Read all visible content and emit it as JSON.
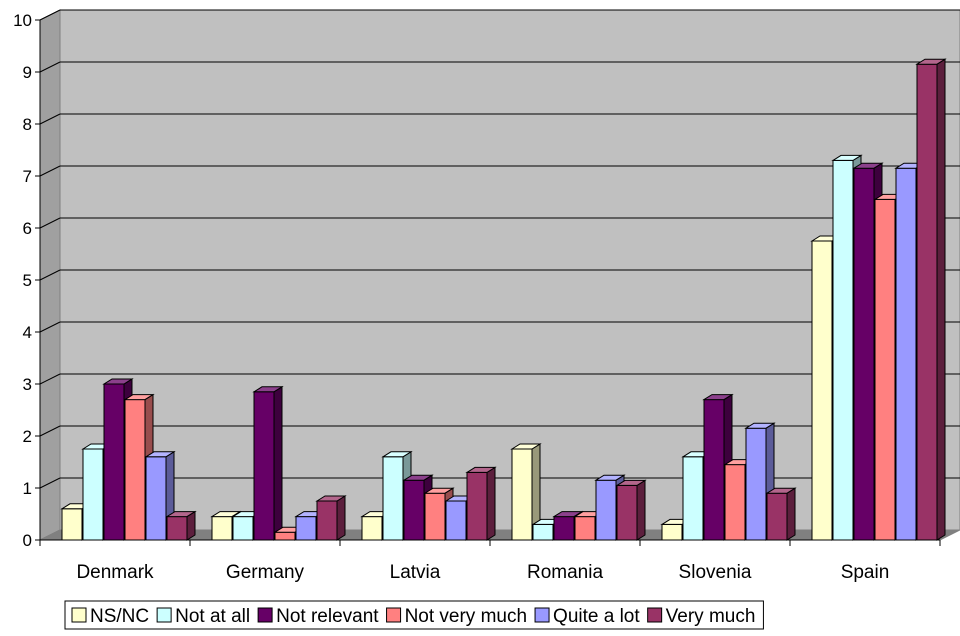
{
  "chart_data": {
    "type": "bar",
    "title": "",
    "xlabel": "",
    "ylabel": "",
    "ylim": [
      0,
      10
    ],
    "yticks": [
      0,
      1,
      2,
      3,
      4,
      5,
      6,
      7,
      8,
      9,
      10
    ],
    "grid": true,
    "legend_position": "bottom",
    "style": "3d-clustered-column",
    "categories": [
      "Denmark",
      "Germany",
      "Latvia",
      "Romania",
      "Slovenia",
      "Spain"
    ],
    "series": [
      {
        "name": "NS/NC",
        "color": "#FFFFCC",
        "values": [
          0.6,
          0.45,
          0.45,
          1.75,
          0.3,
          5.75
        ]
      },
      {
        "name": "Not at all",
        "color": "#CCFFFF",
        "values": [
          1.75,
          0.45,
          1.6,
          0.3,
          1.6,
          7.3
        ]
      },
      {
        "name": "Not relevant",
        "color": "#660066",
        "values": [
          3.0,
          2.85,
          1.15,
          0.45,
          2.7,
          7.15
        ]
      },
      {
        "name": "Not very much",
        "color": "#FF8080",
        "values": [
          2.7,
          0.15,
          0.9,
          0.45,
          1.45,
          6.55
        ]
      },
      {
        "name": "Quite a lot",
        "color": "#9999FF",
        "values": [
          1.6,
          0.45,
          0.75,
          1.15,
          2.15,
          7.15
        ]
      },
      {
        "name": "Very much",
        "color": "#993366",
        "values": [
          0.45,
          0.75,
          1.3,
          1.05,
          0.9,
          9.15
        ]
      }
    ]
  }
}
